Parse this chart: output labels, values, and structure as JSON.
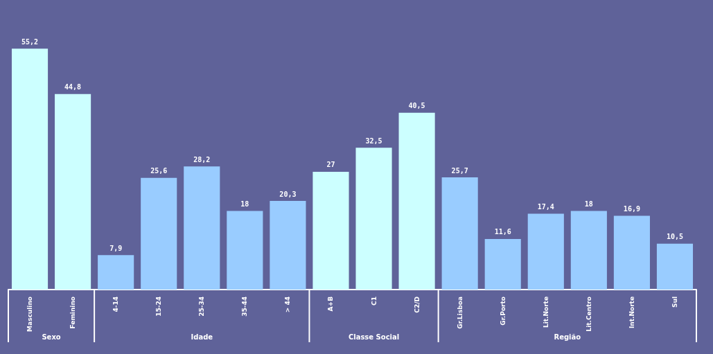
{
  "chart_data": {
    "type": "bar",
    "categories": [
      "Masculino",
      "Feminino",
      "4-14",
      "15-24",
      "25-34",
      "35-44",
      "> 44",
      "A+B",
      "C1",
      "C2/D",
      "Gr.Lisboa",
      "Gr.Porto",
      "Lit.Norte",
      "Lit.Centro",
      "Int.Norte",
      "Sul"
    ],
    "values": [
      55.2,
      44.8,
      7.9,
      25.6,
      28.2,
      18,
      20.3,
      27,
      32.5,
      40.5,
      25.7,
      11.6,
      17.4,
      18,
      16.9,
      10.5
    ],
    "value_labels": [
      "55,2",
      "44,8",
      "7,9",
      "25,6",
      "28,2",
      "18",
      "20,3",
      "27",
      "32,5",
      "40,5",
      "25,7",
      "11,6",
      "17,4",
      "18",
      "16,9",
      "10,5"
    ],
    "colors": [
      "#ccffff",
      "#ccffff",
      "#99ccff",
      "#99ccff",
      "#99ccff",
      "#99ccff",
      "#99ccff",
      "#ccffff",
      "#ccffff",
      "#ccffff",
      "#99ccff",
      "#99ccff",
      "#99ccff",
      "#99ccff",
      "#99ccff",
      "#99ccff"
    ],
    "annotations": [
      "Sexo",
      "Idade",
      "Classe Social",
      "Região"
    ]
  }
}
